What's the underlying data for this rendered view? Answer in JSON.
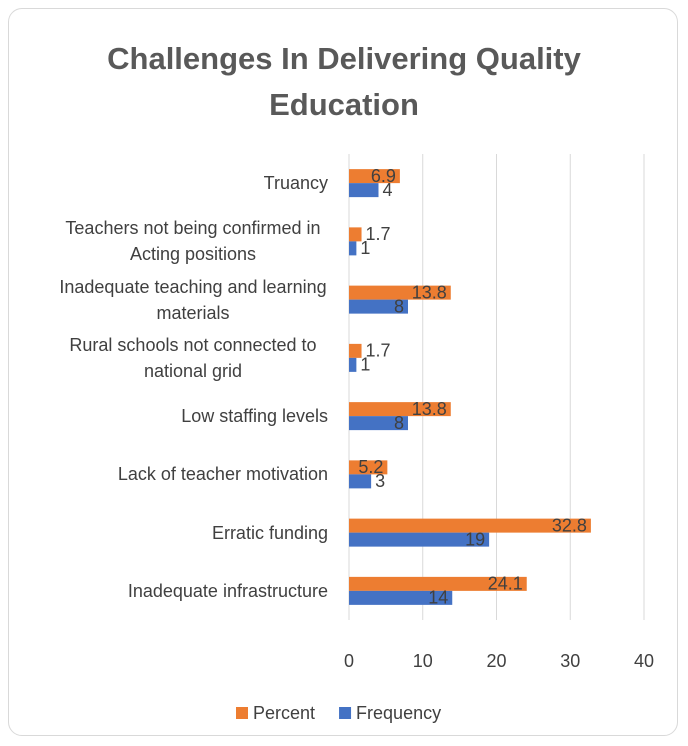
{
  "chart_data": {
    "type": "bar",
    "orientation": "horizontal",
    "title": "Challenges In Delivering Quality Education",
    "categories": [
      "Truancy",
      "Teachers  not being confirmed in Acting positions",
      "Inadequate teaching  and learning materials",
      "Rural schools not connected to national grid",
      "Low staffing levels",
      "Lack of teacher motivation",
      "Erratic funding",
      "Inadequate infrastructure"
    ],
    "series": [
      {
        "name": "Percent",
        "color": "#ED7D31",
        "values": [
          6.9,
          1.7,
          13.8,
          1.7,
          13.8,
          5.2,
          32.8,
          24.1
        ]
      },
      {
        "name": "Frequency",
        "color": "#4472C4",
        "values": [
          4,
          1,
          8,
          1,
          8,
          3,
          19,
          14
        ]
      }
    ],
    "xlim": [
      0,
      40
    ],
    "xticks": [
      0,
      10,
      20,
      30,
      40
    ],
    "grid": true,
    "legend": "bottom"
  }
}
